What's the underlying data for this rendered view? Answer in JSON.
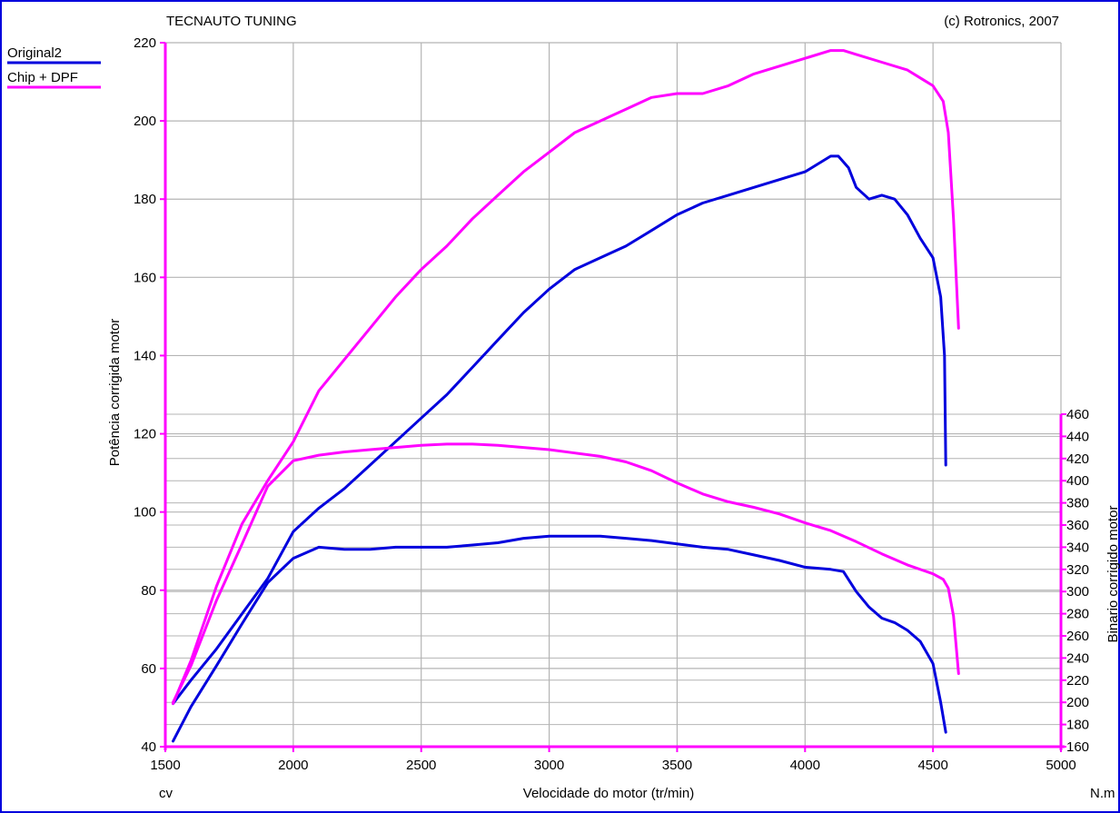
{
  "chart_data": {
    "type": "line",
    "header_left": "TECNAUTO TUNING",
    "header_right": "(c) Rotronics, 2007",
    "xlabel": "Velocidade do motor (tr/min)",
    "ylabel_left": "Potência corrigida  motor",
    "ylabel_right": "Binario corrigido motor",
    "unit_left": "cv",
    "unit_right": "N.m",
    "xlim": [
      1500,
      5000
    ],
    "ylim_left": [
      40,
      220
    ],
    "ylim_right": [
      160,
      460
    ],
    "x_ticks": [
      1500,
      2000,
      2500,
      3000,
      3500,
      4000,
      4500,
      5000
    ],
    "y_ticks_left": [
      40,
      60,
      80,
      100,
      120,
      140,
      160,
      180,
      200,
      220
    ],
    "y_ticks_right": [
      160,
      180,
      200,
      220,
      240,
      260,
      280,
      300,
      320,
      340,
      360,
      380,
      400,
      420,
      440,
      460
    ],
    "grid": true,
    "legend_position": "top-left",
    "colors": {
      "original": "#0000dd",
      "chip": "#ff00ff",
      "grid": "#b4b4b4",
      "frame": "#0000dd"
    },
    "series": [
      {
        "name": "Original2",
        "quantity": "power",
        "axis": "left",
        "color": "#0000dd",
        "x": [
          1530,
          1600,
          1700,
          1800,
          1900,
          2000,
          2100,
          2200,
          2300,
          2400,
          2500,
          2600,
          2700,
          2800,
          2900,
          3000,
          3100,
          3200,
          3300,
          3400,
          3500,
          3600,
          3700,
          3800,
          3900,
          4000,
          4050,
          4100,
          4130,
          4170,
          4200,
          4250,
          4300,
          4350,
          4400,
          4450,
          4500,
          4530,
          4545,
          4550
        ],
        "y": [
          51,
          57,
          65,
          74,
          83,
          95,
          101,
          106,
          112,
          118,
          124,
          130,
          137,
          144,
          151,
          157,
          162,
          165,
          168,
          172,
          176,
          179,
          181,
          183,
          185,
          187,
          189,
          191,
          191,
          188,
          183,
          180,
          181,
          180,
          176,
          170,
          165,
          155,
          140,
          112
        ]
      },
      {
        "name": "Chip + DPF",
        "quantity": "power",
        "axis": "left",
        "color": "#ff00ff",
        "x": [
          1530,
          1600,
          1700,
          1800,
          1900,
          2000,
          2100,
          2200,
          2300,
          2400,
          2500,
          2600,
          2700,
          2800,
          2900,
          3000,
          3100,
          3200,
          3300,
          3400,
          3500,
          3600,
          3700,
          3800,
          3900,
          4000,
          4100,
          4150,
          4200,
          4300,
          4400,
          4500,
          4540,
          4560,
          4580,
          4600
        ],
        "y": [
          51,
          62,
          81,
          97,
          108,
          118,
          131,
          139,
          147,
          155,
          162,
          168,
          175,
          181,
          187,
          192,
          197,
          200,
          203,
          206,
          207,
          207,
          209,
          212,
          214,
          216,
          218,
          218,
          217,
          215,
          213,
          209,
          205,
          197,
          175,
          147
        ]
      },
      {
        "name": "Original2",
        "quantity": "torque",
        "axis": "right",
        "color": "#0000dd",
        "x": [
          1530,
          1600,
          1700,
          1800,
          1900,
          2000,
          2100,
          2200,
          2300,
          2400,
          2500,
          2600,
          2700,
          2800,
          2900,
          3000,
          3100,
          3200,
          3300,
          3400,
          3500,
          3600,
          3700,
          3800,
          3900,
          4000,
          4100,
          4150,
          4200,
          4250,
          4300,
          4350,
          4400,
          4450,
          4500,
          4530,
          4550
        ],
        "y": [
          165,
          196,
          233,
          271,
          308,
          330,
          340,
          338,
          338,
          340,
          340,
          340,
          342,
          344,
          348,
          350,
          350,
          350,
          348,
          346,
          343,
          340,
          338,
          333,
          328,
          322,
          320,
          318,
          300,
          286,
          276,
          272,
          265,
          255,
          235,
          200,
          173
        ]
      },
      {
        "name": "Chip + DPF",
        "quantity": "torque",
        "axis": "right",
        "color": "#ff00ff",
        "x": [
          1530,
          1600,
          1700,
          1800,
          1900,
          2000,
          2100,
          2200,
          2300,
          2400,
          2500,
          2600,
          2700,
          2800,
          2900,
          3000,
          3100,
          3200,
          3300,
          3400,
          3500,
          3600,
          3700,
          3800,
          3900,
          4000,
          4100,
          4200,
          4300,
          4400,
          4500,
          4540,
          4560,
          4580,
          4600
        ],
        "y": [
          200,
          233,
          292,
          343,
          395,
          418,
          423,
          426,
          428,
          430,
          432,
          433,
          433,
          432,
          430,
          428,
          425,
          422,
          417,
          409,
          398,
          388,
          381,
          376,
          370,
          362,
          355,
          345,
          334,
          324,
          316,
          311,
          303,
          278,
          226
        ]
      }
    ]
  }
}
